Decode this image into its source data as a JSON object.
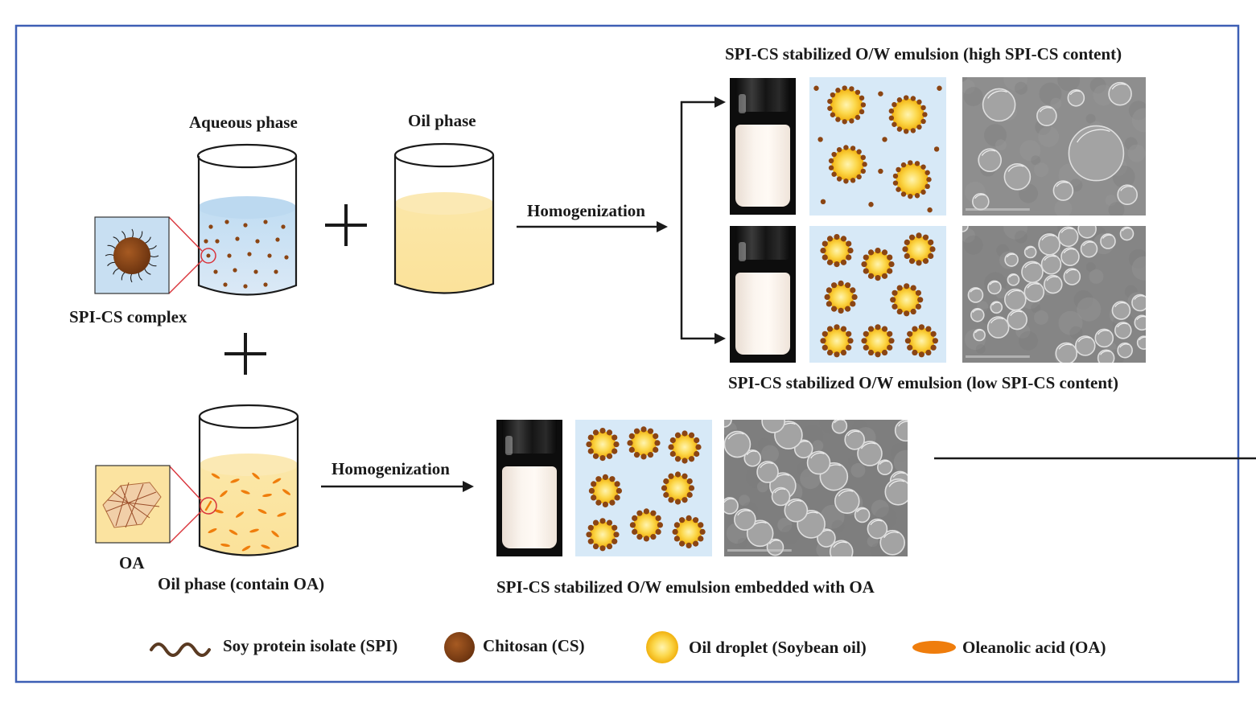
{
  "labels": {
    "aqueous_phase": "Aqueous phase",
    "oil_phase": "Oil phase",
    "spi_cs_complex": "SPI-CS complex",
    "oa": "OA",
    "oil_phase_oa": "Oil phase (contain OA)",
    "homogenization_top": "Homogenization",
    "homogenization_bottom": "Homogenization",
    "high_content": "SPI-CS stabilized O/W emulsion (high SPI-CS content)",
    "low_content": "SPI-CS stabilized O/W emulsion (low SPI-CS content)",
    "embedded_oa": "SPI-CS stabilized O/W emulsion embedded with OA"
  },
  "legend": [
    {
      "icon": "wavy-line-icon",
      "label": "Soy protein isolate (SPI)",
      "color": "#5a3a22"
    },
    {
      "icon": "brown-dot-icon",
      "label": "Chitosan (CS)",
      "color": "#8b4513"
    },
    {
      "icon": "oil-droplet-icon",
      "label": "Oil droplet (Soybean oil)",
      "color": "#f6c21c"
    },
    {
      "icon": "orange-ellipse-icon",
      "label": "Oleanolic acid (OA)",
      "color": "#ef7d0c"
    }
  ],
  "colors": {
    "frame": "#3d5fb5",
    "water": "#cfe3f3",
    "oil": "#fbe3a0",
    "chitosan": "#8b4513",
    "droplet": "#f6c21c",
    "oleanolic": "#ef7d0c",
    "callout": "#d9343b",
    "scheme_bg": "#d7e9f7"
  }
}
